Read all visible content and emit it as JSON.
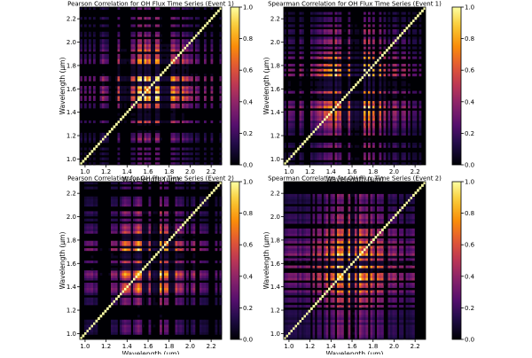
{
  "chart_data": [
    {
      "type": "heatmap",
      "title": "Pearson Correlation for OH Flux Time Series (Event 1)",
      "xlabel": "Wavelength (μm)",
      "ylabel": "Wavelength (μm)",
      "xlim": [
        0.95,
        2.3
      ],
      "ylim": [
        0.95,
        2.3
      ],
      "x_ticks": [
        "1.0",
        "1.2",
        "1.4",
        "1.6",
        "1.8",
        "2.0",
        "2.2"
      ],
      "y_ticks": [
        "1.0",
        "1.2",
        "1.4",
        "1.6",
        "1.8",
        "2.0",
        "2.2"
      ],
      "colormap": "inferno",
      "colorbar": {
        "range": [
          0.0,
          1.0
        ],
        "ticks": [
          "0.0",
          "0.2",
          "0.4",
          "0.6",
          "0.8",
          "1.0"
        ]
      },
      "diagonal_value": 1.0
    },
    {
      "type": "heatmap",
      "title": "Spearman Correlation for OH Flux Time Series (Event 1)",
      "xlabel": "Wavelength (μm)",
      "ylabel": "Wavelength (μm)",
      "xlim": [
        0.95,
        2.3
      ],
      "ylim": [
        0.95,
        2.3
      ],
      "x_ticks": [
        "1.0",
        "1.2",
        "1.4",
        "1.6",
        "1.8",
        "2.0",
        "2.2"
      ],
      "y_ticks": [
        "1.0",
        "1.2",
        "1.4",
        "1.6",
        "1.8",
        "2.0",
        "2.2"
      ],
      "colormap": "inferno",
      "colorbar": {
        "range": [
          0.0,
          1.0
        ],
        "ticks": [
          "0.0",
          "0.2",
          "0.4",
          "0.6",
          "0.8",
          "1.0"
        ]
      },
      "diagonal_value": 1.0
    },
    {
      "type": "heatmap",
      "title": "Pearson Correlation for OH Flux Time Series (Event 2)",
      "xlabel": "Wavelength (μm)",
      "ylabel": "Wavelength (μm)",
      "xlim": [
        0.95,
        2.3
      ],
      "ylim": [
        0.95,
        2.3
      ],
      "x_ticks": [
        "1.0",
        "1.2",
        "1.4",
        "1.6",
        "1.8",
        "2.0",
        "2.2"
      ],
      "y_ticks": [
        "1.0",
        "1.2",
        "1.4",
        "1.6",
        "1.8",
        "2.0",
        "2.2"
      ],
      "colormap": "inferno",
      "colorbar": {
        "range": [
          0.0,
          1.0
        ],
        "ticks": [
          "0.0",
          "0.2",
          "0.4",
          "0.6",
          "0.8",
          "1.0"
        ]
      },
      "diagonal_value": 1.0
    },
    {
      "type": "heatmap",
      "title": "Spearman Correlation for OH Flux Time Series (Event 2)",
      "xlabel": "Wavelength (μm)",
      "ylabel": "Wavelength (μm)",
      "xlim": [
        0.95,
        2.3
      ],
      "ylim": [
        0.95,
        2.3
      ],
      "x_ticks": [
        "1.0",
        "1.2",
        "1.4",
        "1.6",
        "1.8",
        "2.0",
        "2.2"
      ],
      "y_ticks": [
        "1.0",
        "1.2",
        "1.4",
        "1.6",
        "1.8",
        "2.0",
        "2.2"
      ],
      "colormap": "inferno",
      "colorbar": {
        "range": [
          0.0,
          1.0
        ],
        "ticks": [
          "0.0",
          "0.2",
          "0.4",
          "0.6",
          "0.8",
          "1.0"
        ]
      },
      "diagonal_value": 1.0
    }
  ]
}
